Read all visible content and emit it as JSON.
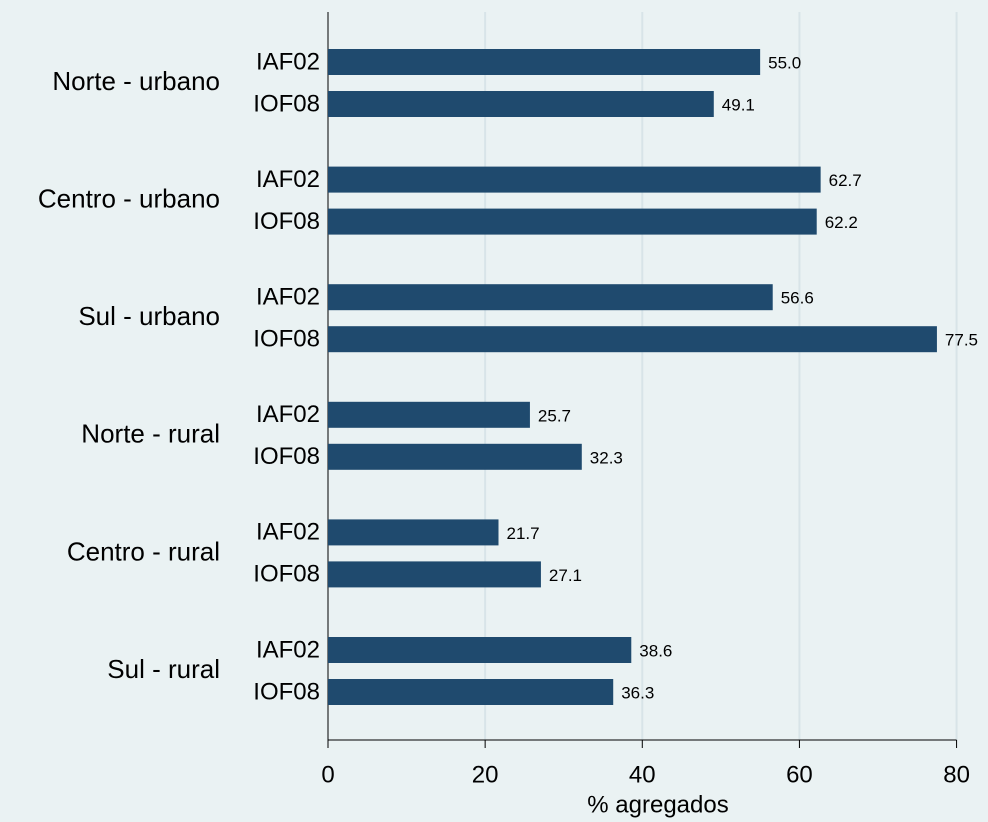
{
  "chart_data": {
    "type": "bar",
    "orientation": "horizontal",
    "categories": [
      "Norte - urbano",
      "Centro - urbano",
      "Sul - urbano",
      "Norte - rural",
      "Centro - rural",
      "Sul - rural"
    ],
    "series": [
      {
        "name": "IAF02",
        "color": "#1f4a6e",
        "values": [
          55.0,
          62.7,
          56.6,
          25.7,
          21.7,
          38.6
        ],
        "value_labels": [
          "55.0",
          "62.7",
          "56.6",
          "25.7",
          "21.7",
          "38.6"
        ]
      },
      {
        "name": "IOF08",
        "color": "#1f4a6e",
        "values": [
          49.1,
          62.2,
          77.5,
          32.3,
          27.1,
          36.3
        ],
        "value_labels": [
          "49.1",
          "62.2",
          "77.5",
          "32.3",
          "27.1",
          "36.3"
        ]
      }
    ],
    "xlabel": "% agregados",
    "xlim": [
      0,
      84
    ],
    "xticks": [
      0,
      20,
      40,
      60,
      80
    ],
    "grid": true
  }
}
